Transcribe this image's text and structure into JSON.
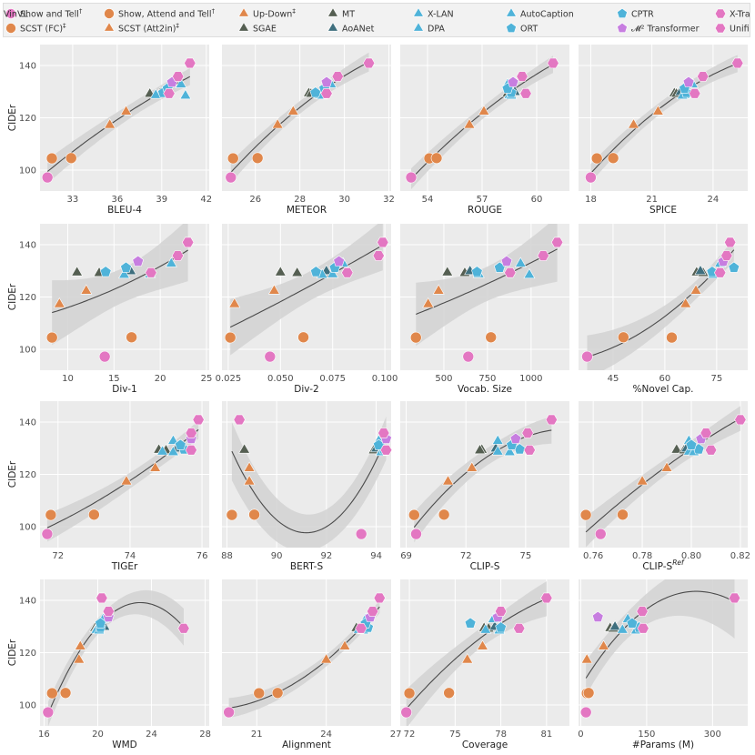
{
  "chart_data": {
    "type": "scatter",
    "y_label": "CIDEr",
    "y_ticks": [
      100,
      120,
      140
    ],
    "ylim": [
      92,
      148
    ],
    "legend": [
      {
        "name": "Show and Tell",
        "sup": "†",
        "shape": "circle",
        "color": "#e377c2"
      },
      {
        "name": "SCST (FC)",
        "sup": "‡",
        "shape": "circle",
        "color": "#e0874b"
      },
      {
        "name": "Show, Attend and Tell",
        "sup": "†",
        "shape": "circle",
        "color": "#e0874b"
      },
      {
        "name": "SCST (Att2in)",
        "sup": "‡",
        "shape": "triangle",
        "color": "#e0874b"
      },
      {
        "name": "Up-Down",
        "sup": "‡",
        "shape": "triangle",
        "color": "#e0874b"
      },
      {
        "name": "SGAE",
        "sup": "",
        "shape": "triangle",
        "color": "#555f52"
      },
      {
        "name": "MT",
        "sup": "",
        "shape": "triangle",
        "color": "#555f52"
      },
      {
        "name": "AoANet",
        "sup": "",
        "shape": "triangle",
        "color": "#3f6f7e"
      },
      {
        "name": "X-LAN",
        "sup": "",
        "shape": "triangle",
        "color": "#4fb3d9"
      },
      {
        "name": "DPA",
        "sup": "",
        "shape": "triangle",
        "color": "#4fb3d9"
      },
      {
        "name": "AutoCaption",
        "sup": "",
        "shape": "triangle",
        "color": "#4fb3d9"
      },
      {
        "name": "ORT",
        "sup": "",
        "shape": "pentagon",
        "color": "#4fb3d9"
      },
      {
        "name": "CPTR",
        "sup": "",
        "shape": "pentagon",
        "color": "#4fb3d9"
      },
      {
        "name": "𝓜² Transformer",
        "sup": "",
        "shape": "pentagon",
        "color": "#c77ee0"
      },
      {
        "name": "X-Transformer",
        "sup": "",
        "shape": "hexagon",
        "color": "#e377c2"
      },
      {
        "name": "Unified VLP",
        "sup": "",
        "shape": "hexagon",
        "color": "#e377c2"
      },
      {
        "name": "VinVL",
        "sup": "",
        "shape": "hexagon",
        "color": "#e377c2"
      }
    ],
    "cider": [
      97.2,
      104.5,
      104.6,
      117.2,
      122.3,
      129.3,
      129.1,
      129.8,
      128.6,
      132.7,
      128.4,
      129.6,
      131.2,
      133.6,
      135.8,
      129.3,
      140.9
    ],
    "panels": [
      {
        "xlabel": "BLEU-4",
        "xlim": [
          30.8,
          42.2
        ],
        "xticks": [
          33,
          36,
          39,
          42
        ],
        "tick_labels": [
          "33",
          "36",
          "39",
          "42"
        ],
        "x": [
          31.3,
          31.6,
          32.9,
          35.5,
          36.6,
          38.9,
          38.2,
          39.1,
          38.6,
          40.3,
          40.6,
          39.1,
          39.4,
          39.7,
          40.1,
          39.5,
          40.9
        ]
      },
      {
        "xlabel": "METEOR",
        "xlim": [
          24.5,
          32.1
        ],
        "xticks": [
          26,
          28,
          30,
          32
        ],
        "tick_labels": [
          "26",
          "28",
          "30",
          "32"
        ],
        "x": [
          24.9,
          25.0,
          26.1,
          27.0,
          27.7,
          28.4,
          28.5,
          29.2,
          28.9,
          29.4,
          29.0,
          28.7,
          29.1,
          29.2,
          29.7,
          29.2,
          31.1
        ]
      },
      {
        "xlabel": "ROUGE",
        "xlim": [
          52.5,
          61.8
        ],
        "xticks": [
          54,
          57,
          60
        ],
        "tick_labels": [
          "54",
          "57",
          "60"
        ],
        "x": [
          53.1,
          54.1,
          54.5,
          56.3,
          57.1,
          58.4,
          58.6,
          58.8,
          58.5,
          58.4,
          58.6,
          58.6,
          58.4,
          58.7,
          59.2,
          59.4,
          60.9
        ]
      },
      {
        "xlabel": "SPICE",
        "xlim": [
          17.4,
          25.7
        ],
        "xticks": [
          18,
          21,
          24
        ],
        "tick_labels": [
          "18",
          "21",
          "24"
        ],
        "x": [
          18.0,
          18.3,
          19.1,
          20.1,
          21.3,
          22.1,
          22.2,
          22.4,
          22.6,
          23.0,
          22.5,
          22.7,
          22.6,
          22.8,
          23.5,
          23.1,
          25.2
        ]
      },
      {
        "xlabel": "Div-1",
        "xlim": [
          7,
          25.3
        ],
        "xticks": [
          10,
          15,
          20,
          25
        ],
        "tick_labels": [
          "10",
          "15",
          "20",
          "25"
        ],
        "x": [
          14.0,
          8.3,
          16.9,
          9.1,
          12.0,
          11.0,
          13.4,
          16.8,
          18.9,
          21.2,
          16.1,
          14.1,
          16.3,
          17.6,
          21.9,
          19.0,
          23.0
        ]
      },
      {
        "xlabel": "Div-2",
        "xlim": [
          0.022,
          0.103
        ],
        "xticks": [
          0.025,
          0.05,
          0.075,
          0.1
        ],
        "tick_labels": [
          "0.025",
          "0.050",
          "0.075",
          "0.100"
        ],
        "x": [
          0.045,
          0.026,
          0.061,
          0.028,
          0.047,
          0.05,
          0.058,
          0.072,
          0.075,
          0.08,
          0.07,
          0.067,
          0.076,
          0.078,
          0.097,
          0.082,
          0.099
        ]
      },
      {
        "xlabel": "Vocab. Size",
        "xlim": [
          250,
          1220
        ],
        "xticks": [
          500,
          750,
          1000
        ],
        "tick_labels": [
          "500",
          "750",
          "1000"
        ],
        "x": [
          640,
          340,
          770,
          410,
          470,
          520,
          620,
          650,
          700,
          940,
          990,
          690,
          820,
          860,
          1070,
          880,
          1150
        ]
      },
      {
        "xlabel": "%Novel Cap.",
        "xlim": [
          35,
          84
        ],
        "xticks": [
          45,
          60,
          75
        ],
        "tick_labels": [
          "45",
          "60",
          "75"
        ],
        "x": [
          37.5,
          62.0,
          48.0,
          66.0,
          69.0,
          69.2,
          71.1,
          70.3,
          75.1,
          76.0,
          74.0,
          73.7,
          80.0,
          76.9,
          77.9,
          76.0,
          78.9
        ]
      },
      {
        "xlabel": "TIGEr",
        "xlim": [
          71.5,
          76.2
        ],
        "xticks": [
          72,
          74,
          76
        ],
        "tick_labels": [
          "72",
          "74",
          "76"
        ],
        "x": [
          71.7,
          71.8,
          73.0,
          73.9,
          74.7,
          74.8,
          75.0,
          75.3,
          74.9,
          75.2,
          75.2,
          75.5,
          75.4,
          75.7,
          75.7,
          75.7,
          75.9
        ]
      },
      {
        "xlabel": "BERT-S",
        "xlim": [
          87.8,
          94.6
        ],
        "xticks": [
          88,
          90,
          92,
          94
        ],
        "tick_labels": [
          "88",
          "90",
          "92",
          "94"
        ],
        "x": [
          93.4,
          88.2,
          89.1,
          88.9,
          88.9,
          88.7,
          93.9,
          94.0,
          94.2,
          94.1,
          94.2,
          94.3,
          94.1,
          94.4,
          94.3,
          94.4,
          88.5
        ]
      },
      {
        "xlabel": "CLIP-S",
        "xlim": [
          68.7,
          77.2
        ],
        "xticks": [
          69,
          72,
          75
        ],
        "tick_labels": [
          "69",
          "72",
          "75"
        ],
        "x": [
          69.5,
          69.4,
          70.9,
          71.1,
          72.3,
          72.8,
          72.7,
          73.5,
          73.6,
          73.6,
          74.2,
          74.7,
          74.3,
          74.5,
          75.1,
          75.2,
          76.3
        ]
      },
      {
        "xlabel": "CLIP-S",
        "xlabel_sup": "Ref",
        "xlim": [
          0.754,
          0.823
        ],
        "xticks": [
          0.76,
          0.78,
          0.8,
          0.82
        ],
        "tick_labels": [
          "0.76",
          "0.78",
          "0.80",
          "0.82"
        ],
        "x": [
          0.763,
          0.757,
          0.772,
          0.78,
          0.79,
          0.794,
          0.797,
          0.798,
          0.799,
          0.799,
          0.801,
          0.803,
          0.8,
          0.804,
          0.806,
          0.808,
          0.82
        ]
      },
      {
        "xlabel": "WMD",
        "xlim": [
          15.7,
          28.3
        ],
        "xticks": [
          16,
          20,
          24,
          28
        ],
        "tick_labels": [
          "16",
          "20",
          "24",
          "28"
        ],
        "x": [
          16.3,
          16.6,
          17.6,
          18.6,
          18.7,
          19.8,
          19.9,
          20.5,
          19.9,
          20.4,
          20.1,
          20.2,
          20.2,
          20.8,
          20.8,
          26.4,
          20.3
        ]
      },
      {
        "xlabel": "Alignment",
        "xlim": [
          19.5,
          26.8
        ],
        "xticks": [
          21,
          24,
          27
        ],
        "tick_labels": [
          "21",
          "24",
          "27"
        ],
        "x": [
          19.8,
          21.1,
          21.9,
          24.0,
          24.8,
          25.3,
          25.6,
          25.7,
          25.4,
          25.7,
          25.6,
          25.8,
          25.7,
          25.9,
          26.0,
          25.5,
          26.3
        ]
      },
      {
        "xlabel": "Coverage",
        "xlim": [
          71.4,
          82.5
        ],
        "xticks": [
          72,
          75,
          78,
          81
        ],
        "tick_labels": [
          "72",
          "75",
          "78",
          "81"
        ],
        "x": [
          71.8,
          72.0,
          74.6,
          75.8,
          76.8,
          76.9,
          77.2,
          77.6,
          77.0,
          77.5,
          77.9,
          78.0,
          76.0,
          77.8,
          78.0,
          79.2,
          81.0
        ]
      },
      {
        "xlabel": "#Params (M)",
        "xlim": [
          -5,
          380
        ],
        "xticks": [
          0,
          150,
          300
        ],
        "tick_labels": [
          "0",
          "150",
          "300"
        ],
        "x": [
          12,
          14,
          18,
          14,
          52,
          67,
          74,
          78,
          95,
          107,
          126,
          133,
          117,
          39,
          140,
          142,
          350
        ]
      }
    ]
  }
}
